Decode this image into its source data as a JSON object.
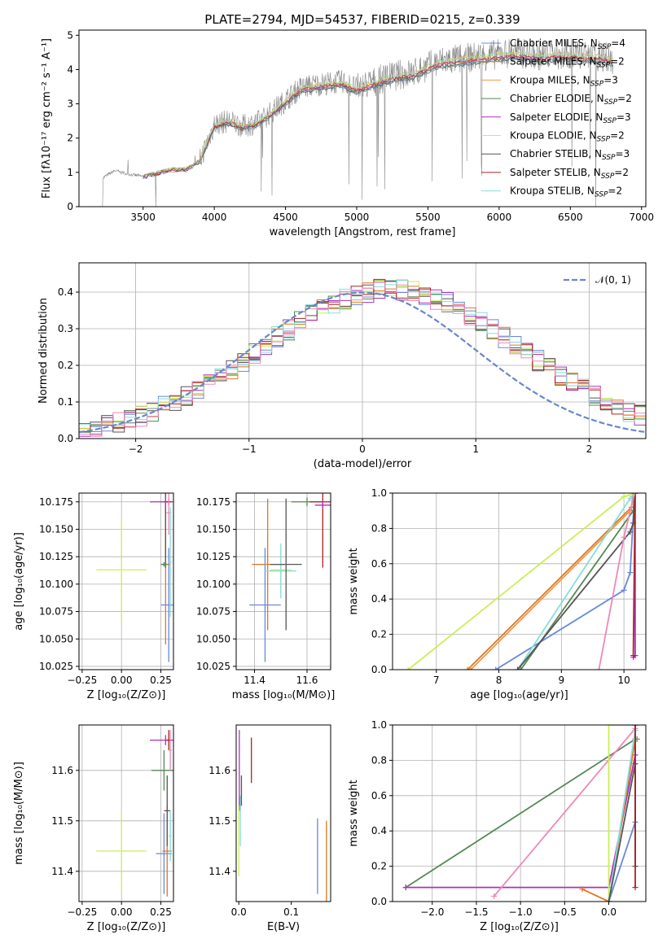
{
  "title": "PLATE=2794, MJD=54537, FIBERID=0215, z=0.339",
  "palette": [
    "#6688dd",
    "#dd7722",
    "#558855",
    "#aa33bb",
    "#ccee55",
    "#555555",
    "#aa2222",
    "#88dddd",
    "#ee88bb",
    "#888888"
  ],
  "chart_data": [
    {
      "id": "spectrum",
      "type": "line",
      "xlabel": "wavelength [Angstrom, rest frame]",
      "ylabel": "Flux [fλ10⁻¹⁷ erg cm⁻² s⁻¹ A⁻¹]",
      "xlim": [
        3050,
        7030
      ],
      "ylim": [
        0,
        5.15
      ],
      "xticks": [
        3500,
        4000,
        4500,
        5000,
        5500,
        6000,
        6500,
        7000
      ],
      "yticks": [
        0,
        1,
        2,
        3,
        4,
        5
      ],
      "legend": [
        {
          "label": "Chabrier MILES, N",
          "sub": "SSP",
          "suffix": "=4",
          "color": "#6688dd"
        },
        {
          "label": "Salpeter MILES, N",
          "sub": "SSP",
          "suffix": "=2",
          "color": "#dd7722"
        },
        {
          "label": "Kroupa MILES, N",
          "sub": "SSP",
          "suffix": "=3",
          "color": "#ee9944"
        },
        {
          "label": "Chabrier ELODIE, N",
          "sub": "SSP",
          "suffix": "=2",
          "color": "#558855"
        },
        {
          "label": "Salpeter ELODIE, N",
          "sub": "SSP",
          "suffix": "=3",
          "color": "#aa33bb"
        },
        {
          "label": "Kroupa ELODIE, N",
          "sub": "SSP",
          "suffix": "=2",
          "color": "#ccee55"
        },
        {
          "label": "Chabrier STELIB, N",
          "sub": "SSP",
          "suffix": "=3",
          "color": "#555555"
        },
        {
          "label": "Salpeter STELIB, N",
          "sub": "SSP",
          "suffix": "=2",
          "color": "#aa2222"
        },
        {
          "label": "Kroupa STELIB, N",
          "sub": "SSP",
          "suffix": "=2",
          "color": "#88dddd"
        }
      ],
      "legend_loc": "upper right",
      "data_color": "#888888",
      "continuum": {
        "x": [
          3220,
          3300,
          3400,
          3500,
          3600,
          3700,
          3800,
          3900,
          4000,
          4100,
          4200,
          4300,
          4400,
          4500,
          4600,
          4700,
          4800,
          4900,
          5000,
          5100,
          5200,
          5300,
          5400,
          5500,
          5600,
          5700,
          5800,
          5900,
          6000,
          6100,
          6200,
          6300,
          6400,
          6500,
          6600,
          6700,
          6800
        ],
        "y": [
          0.85,
          1.05,
          0.95,
          0.88,
          1.0,
          1.1,
          1.1,
          1.35,
          2.4,
          2.5,
          2.35,
          2.45,
          2.75,
          3.1,
          3.45,
          3.55,
          3.6,
          3.65,
          3.45,
          3.6,
          3.75,
          3.85,
          3.9,
          4.1,
          4.25,
          4.3,
          4.35,
          4.4,
          4.45,
          4.5,
          4.45,
          4.4,
          4.45,
          4.45,
          4.4,
          4.4,
          4.3
        ]
      }
    },
    {
      "id": "residuals",
      "type": "histogram",
      "xlabel": "(data-model)/error",
      "ylabel": "Normed distribution",
      "xlim": [
        -2.5,
        2.5
      ],
      "ylim": [
        0,
        0.48
      ],
      "xticks": [
        -2,
        -1,
        0,
        1,
        2
      ],
      "yticks": [
        0.0,
        0.1,
        0.2,
        0.3,
        0.4
      ],
      "grid": true,
      "legend": [
        {
          "label": "𝒩(0, 1)",
          "color": "#6688cc",
          "style": "dashed"
        }
      ],
      "bin_width": 0.1,
      "series_colors": [
        "#6688dd",
        "#dd7722",
        "#558855",
        "#aa33bb",
        "#ccee55",
        "#555555",
        "#aa2222",
        "#88dddd",
        "#ee88bb"
      ]
    },
    {
      "id": "z-age",
      "type": "scatter",
      "xlabel": "Z [log₁₀(Z/Z⊙)]",
      "ylabel": "age  [log₁₀(age/yr)]",
      "xlim": [
        -0.27,
        0.33
      ],
      "ylim": [
        10.022,
        10.183
      ],
      "xticks": [
        -0.25,
        0.0,
        0.25
      ],
      "xtick_labels": [
        "−0.25",
        "0.00",
        "0.25"
      ],
      "yticks": [
        10.025,
        10.05,
        10.075,
        10.1,
        10.125,
        10.15,
        10.175
      ],
      "ytick_labels": [
        "10.025",
        "10.050",
        "10.075",
        "10.100",
        "10.125",
        "10.150",
        "10.175"
      ],
      "grid": true,
      "points": [
        {
          "x": 0.0,
          "y": 10.113,
          "xerr": 0.16,
          "yerr": 0.047,
          "color": "#ccee55"
        },
        {
          "x": 0.3,
          "y": 10.081,
          "xerr": 0.05,
          "yerr": 0.052,
          "color": "#6688dd"
        },
        {
          "x": 0.28,
          "y": 10.118,
          "xerr": 0.03,
          "yerr": 0.073,
          "color": "#dd7722"
        },
        {
          "x": 0.28,
          "y": 10.175,
          "xerr": 0.02,
          "yerr": 0.06,
          "color": "#555555"
        },
        {
          "x": 0.28,
          "y": 10.175,
          "xerr": 0.1,
          "yerr": 0.005,
          "color": "#aa33bb"
        },
        {
          "x": 0.3,
          "y": 10.175,
          "xerr": 0.015,
          "yerr": 0.003,
          "color": "#aa2222"
        },
        {
          "x": 0.3,
          "y": 10.165,
          "xerr": 0.015,
          "yerr": 0.02,
          "color": "#ee88bb"
        },
        {
          "x": 0.31,
          "y": 10.12,
          "xerr": 0.01,
          "yerr": 0.05,
          "color": "#88dddd"
        },
        {
          "x": 0.27,
          "y": 10.118,
          "xerr": 0.02,
          "yerr": 0.002,
          "color": "#558855"
        }
      ]
    },
    {
      "id": "mass-age",
      "type": "scatter",
      "xlabel": "mass [log₁₀(M/M⊙)]",
      "ylabel": "",
      "xlim": [
        11.33,
        11.69
      ],
      "ylim": [
        10.022,
        10.183
      ],
      "xticks": [
        11.4,
        11.6
      ],
      "xtick_labels": [
        "11.4",
        "11.6"
      ],
      "yticks": [
        10.025,
        10.05,
        10.075,
        10.1,
        10.125,
        10.15,
        10.175
      ],
      "ytick_labels": [
        "10.025",
        "10.050",
        "10.075",
        "10.100",
        "10.125",
        "10.150",
        "10.175"
      ],
      "grid": true,
      "points": [
        {
          "x": 11.44,
          "y": 10.081,
          "xerr": 0.06,
          "yerr": 0.052,
          "color": "#6688dd"
        },
        {
          "x": 11.45,
          "y": 10.118,
          "xerr": 0.06,
          "yerr": 0.06,
          "color": "#dd7722"
        },
        {
          "x": 11.5,
          "y": 10.113,
          "xerr": 0.04,
          "yerr": 0.02,
          "color": "#ccee55"
        },
        {
          "x": 11.5,
          "y": 10.112,
          "xerr": 0.06,
          "yerr": 0.025,
          "color": "#88dddd"
        },
        {
          "x": 11.52,
          "y": 10.118,
          "xerr": 0.06,
          "yerr": 0.06,
          "color": "#555555"
        },
        {
          "x": 11.6,
          "y": 10.175,
          "xerr": 0.06,
          "yerr": 0.004,
          "color": "#558855"
        },
        {
          "x": 11.66,
          "y": 10.175,
          "xerr": 0.05,
          "yerr": 0.06,
          "color": "#aa2222"
        },
        {
          "x": 11.66,
          "y": 10.172,
          "xerr": 0.03,
          "yerr": 0.004,
          "color": "#aa33bb"
        }
      ]
    },
    {
      "id": "age-weight",
      "type": "line",
      "xlabel": "age  [log₁₀(age/yr)]",
      "ylabel": "mass weight",
      "xlim": [
        6.3,
        10.35
      ],
      "ylim": [
        0,
        1
      ],
      "xticks": [
        7,
        8,
        9,
        10
      ],
      "yticks": [
        0.0,
        0.2,
        0.4,
        0.6,
        0.8,
        1.0
      ],
      "grid": true,
      "series": [
        {
          "color": "#ccee55",
          "x": [
            6.55,
            10.0,
            10.18
          ],
          "y": [
            0,
            0.98,
            1.0
          ]
        },
        {
          "color": "#dd7722",
          "x": [
            7.5,
            10.12,
            10.15
          ],
          "y": [
            0,
            0.92,
            1.0
          ]
        },
        {
          "color": "#ee9944",
          "x": [
            7.55,
            10.1,
            10.17
          ],
          "y": [
            0,
            0.9,
            1.0
          ]
        },
        {
          "color": "#6688dd",
          "x": [
            7.95,
            10.0,
            10.1,
            10.17
          ],
          "y": [
            0,
            0.45,
            0.55,
            1.0
          ]
        },
        {
          "color": "#88dddd",
          "x": [
            8.3,
            10.1,
            10.17
          ],
          "y": [
            0,
            0.97,
            1.0
          ]
        },
        {
          "color": "#558855",
          "x": [
            8.35,
            10.15,
            10.17
          ],
          "y": [
            0,
            0.9,
            1.0
          ]
        },
        {
          "color": "#555555",
          "x": [
            8.3,
            10.1,
            10.15,
            10.18
          ],
          "y": [
            0,
            0.78,
            0.83,
            1.0
          ]
        },
        {
          "color": "#aa33bb",
          "x": [
            10.15,
            10.18,
            10.18
          ],
          "y": [
            0.07,
            0.08,
            1.0
          ]
        },
        {
          "color": "#aa2222",
          "x": [
            10.15,
            10.18
          ],
          "y": [
            0.08,
            1.0
          ]
        },
        {
          "color": "#ee88bb",
          "x": [
            9.6,
            10.0,
            10.17
          ],
          "y": [
            0,
            0.75,
            1.0
          ]
        }
      ]
    },
    {
      "id": "z-mass",
      "type": "scatter",
      "xlabel": "Z [log₁₀(Z/Z⊙)]",
      "ylabel": "mass [log₁₀(M/M⊙)]",
      "xlim": [
        -0.27,
        0.33
      ],
      "ylim": [
        11.34,
        11.69
      ],
      "xticks": [
        -0.25,
        0.0,
        0.25
      ],
      "xtick_labels": [
        "−0.25",
        "0.00",
        "0.25"
      ],
      "yticks": [
        11.4,
        11.5,
        11.6
      ],
      "ytick_labels": [
        "11.4",
        "11.5",
        "11.6"
      ],
      "grid": true,
      "points": [
        {
          "x": 0.0,
          "y": 11.44,
          "xerr": 0.16,
          "yerr": 0.08,
          "color": "#ccee55"
        },
        {
          "x": 0.27,
          "y": 11.435,
          "xerr": 0.05,
          "yerr": 0.08,
          "color": "#6688dd"
        },
        {
          "x": 0.29,
          "y": 11.44,
          "xerr": 0.03,
          "yerr": 0.09,
          "color": "#dd7722"
        },
        {
          "x": 0.29,
          "y": 11.52,
          "xerr": 0.02,
          "yerr": 0.07,
          "color": "#555555"
        },
        {
          "x": 0.28,
          "y": 11.66,
          "xerr": 0.1,
          "yerr": 0.01,
          "color": "#aa33bb"
        },
        {
          "x": 0.3,
          "y": 11.66,
          "xerr": 0.015,
          "yerr": 0.02,
          "color": "#aa2222"
        },
        {
          "x": 0.31,
          "y": 11.47,
          "xerr": 0.01,
          "yerr": 0.05,
          "color": "#88dddd"
        },
        {
          "x": 0.27,
          "y": 11.6,
          "xerr": 0.08,
          "yerr": 0.04,
          "color": "#558855"
        },
        {
          "x": 0.31,
          "y": 11.64,
          "xerr": 0.01,
          "yerr": 0.04,
          "color": "#ee88bb"
        }
      ]
    },
    {
      "id": "ebv-mass",
      "type": "scatter",
      "xlabel": "E(B-V)",
      "ylabel": "",
      "xlim": [
        -0.005,
        0.175
      ],
      "ylim": [
        11.34,
        11.69
      ],
      "xticks": [
        0.0,
        0.1
      ],
      "xtick_labels": [
        "0.0",
        "0.1"
      ],
      "yticks": [
        11.4,
        11.5,
        11.6
      ],
      "ytick_labels": [
        "11.4",
        "11.5",
        "11.6"
      ],
      "grid": false,
      "points": [
        {
          "x": 0.001,
          "y": 11.6,
          "xerr": 0,
          "yerr": 0.08,
          "color": "#aa33bb"
        },
        {
          "x": 0.0,
          "y": 11.46,
          "xerr": 0,
          "yerr": 0.07,
          "color": "#ccee55"
        },
        {
          "x": 0.003,
          "y": 11.5,
          "xerr": 0,
          "yerr": 0.05,
          "color": "#88dddd"
        },
        {
          "x": 0.005,
          "y": 11.56,
          "xerr": 0,
          "yerr": 0.03,
          "color": "#555555"
        },
        {
          "x": 0.024,
          "y": 11.62,
          "xerr": 0,
          "yerr": 0.045,
          "color": "#aa2222"
        },
        {
          "x": 0.15,
          "y": 11.43,
          "xerr": 0,
          "yerr": 0.075,
          "color": "#6688dd"
        },
        {
          "x": 0.167,
          "y": 11.42,
          "xerr": 0,
          "yerr": 0.08,
          "color": "#dd7722"
        }
      ]
    },
    {
      "id": "z-weight",
      "type": "line",
      "xlabel": "Z [log₁₀(Z/Z⊙)]",
      "ylabel": "mass weight",
      "xlim": [
        -2.45,
        0.42
      ],
      "ylim": [
        0,
        1
      ],
      "xticks": [
        -2.0,
        -1.5,
        -1.0,
        -0.5,
        0.0
      ],
      "xtick_labels": [
        "−2.0",
        "−1.5",
        "−1.0",
        "−0.5",
        "0.0"
      ],
      "yticks": [
        0.0,
        0.2,
        0.4,
        0.6,
        0.8,
        1.0
      ],
      "grid": true,
      "series": [
        {
          "color": "#558855",
          "x": [
            -2.3,
            0.3,
            0.32
          ],
          "y": [
            0.08,
            0.92,
            0.92
          ]
        },
        {
          "color": "#aa33bb",
          "x": [
            -2.3,
            0.0,
            0.3,
            0.3
          ],
          "y": [
            0.08,
            0.08,
            0.83,
            1.0
          ]
        },
        {
          "color": "#ee88bb",
          "x": [
            -1.3,
            0.3
          ],
          "y": [
            0.03,
            0.98
          ]
        },
        {
          "color": "#dd7722",
          "x": [
            -0.3,
            0.0,
            0.3
          ],
          "y": [
            0.07,
            0.0,
            0.92
          ]
        },
        {
          "color": "#ccee55",
          "x": [
            0.0,
            0.0,
            0.3
          ],
          "y": [
            0.0,
            1.0,
            1.0
          ]
        },
        {
          "color": "#6688dd",
          "x": [
            0.0,
            0.3,
            0.3
          ],
          "y": [
            0.0,
            0.45,
            1.0
          ]
        },
        {
          "color": "#88dddd",
          "x": [
            0.0,
            0.3
          ],
          "y": [
            0.0,
            0.97
          ]
        },
        {
          "color": "#555555",
          "x": [
            0.0,
            0.3,
            0.3
          ],
          "y": [
            0.0,
            0.78,
            0.2
          ]
        },
        {
          "color": "#aa2222",
          "x": [
            0.3,
            0.3
          ],
          "y": [
            0.08,
            1.0
          ]
        }
      ]
    }
  ]
}
